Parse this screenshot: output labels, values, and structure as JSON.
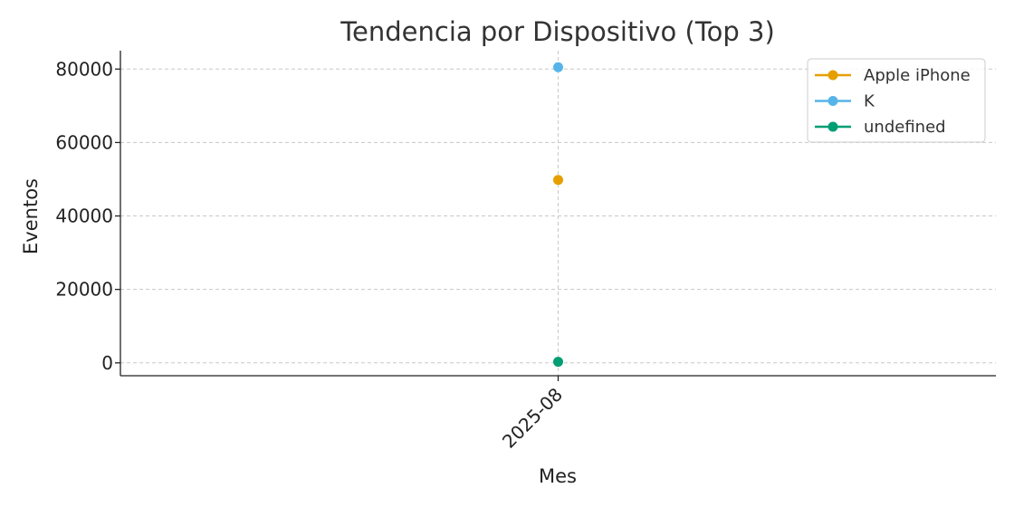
{
  "chart_data": {
    "type": "line",
    "title": "Tendencia por Dispositivo (Top 3)",
    "xlabel": "Mes",
    "ylabel": "Eventos",
    "categories": [
      "2025-08"
    ],
    "ylim": [
      -3500,
      85000
    ],
    "yticks": [
      0,
      20000,
      40000,
      60000,
      80000
    ],
    "grid": true,
    "legend": "top-right",
    "series": [
      {
        "name": "Apple iPhone",
        "color": "#E69F00",
        "values": [
          49800
        ]
      },
      {
        "name": "K",
        "color": "#56B4E9",
        "values": [
          80500
        ]
      },
      {
        "name": "undefined",
        "color": "#009E73",
        "values": [
          300
        ]
      }
    ]
  }
}
